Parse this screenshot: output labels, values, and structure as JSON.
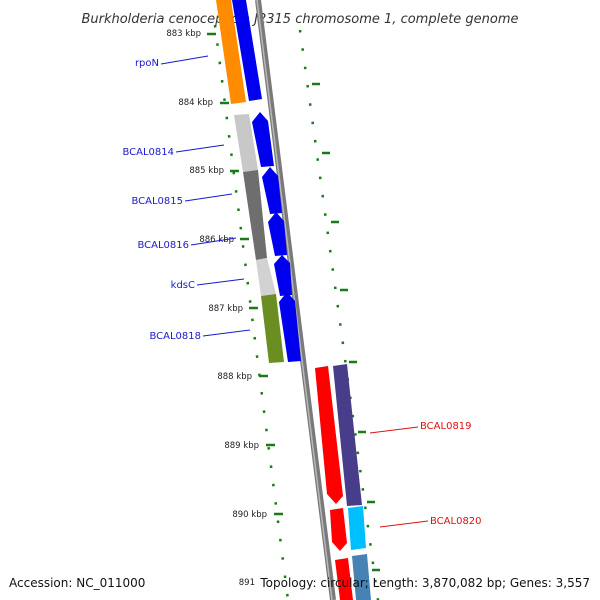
{
  "map": {
    "title": "Burkholderia cenocepacia J2315 chromosome 1, complete genome",
    "accession_text": "Accession: NC_011000",
    "summary_text": "Topology: circular; Length: 3,870,082 bp; Genes: 3,557",
    "colors": {
      "backbone": "#8a8a8a",
      "tick_dots": "#1a7a1a",
      "forward_label": "#1a1acc",
      "reverse_label": "#dd1111",
      "cds_arrow": "#0000ee"
    }
  },
  "ticks": [
    {
      "label": "883 kbp"
    },
    {
      "label": "884 kbp"
    },
    {
      "label": "885 kbp"
    },
    {
      "label": "886 kbp"
    },
    {
      "label": "887 kbp"
    },
    {
      "label": "888 kbp"
    },
    {
      "label": "889 kbp"
    },
    {
      "label": "890 kbp"
    },
    {
      "label": "891"
    }
  ],
  "genes_forward": [
    {
      "label": "rpoN",
      "color": "#ff8c00"
    },
    {
      "label": "BCAL0814",
      "color": "#c8c8c8"
    },
    {
      "label": "BCAL0815",
      "color": "#6e6e6e"
    },
    {
      "label": "BCAL0816",
      "color": "#6e6e6e"
    },
    {
      "label": "kdsC",
      "color": "#cfcfcf"
    },
    {
      "label": "BCAL0818",
      "color": "#6b8e23"
    }
  ],
  "genes_reverse": [
    {
      "label": "BCAL0819",
      "color": "#483d8b"
    },
    {
      "label": "BCAL0820",
      "color": "#00bfff"
    }
  ]
}
